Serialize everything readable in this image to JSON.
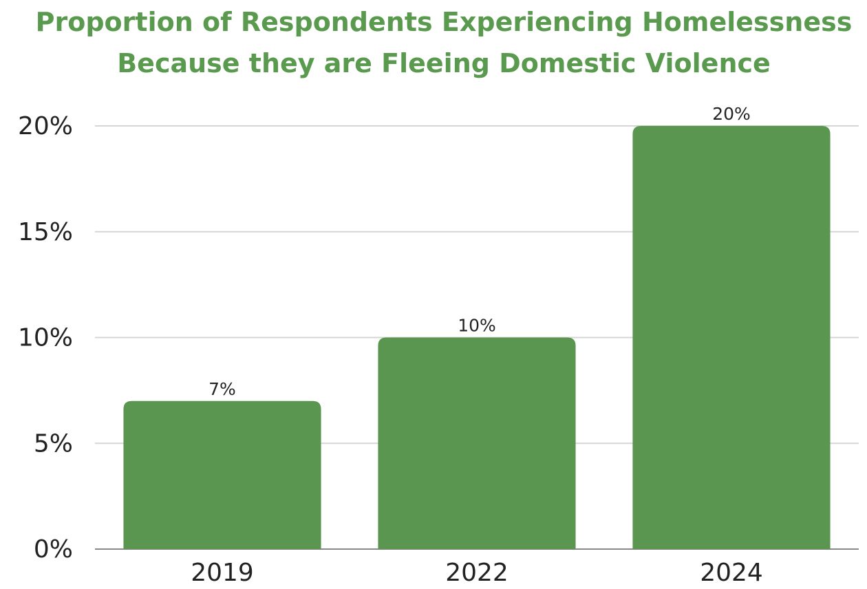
{
  "chart_data": {
    "type": "bar",
    "title": "Proportion of Respondents Experiencing Homelessness Because they are Fleeing Domestic Violence",
    "categories": [
      "2019",
      "2022",
      "2024"
    ],
    "values": [
      7,
      10,
      20
    ],
    "value_labels": [
      "7%",
      "10%",
      "20%"
    ],
    "color": "#5a964f",
    "ylim": [
      0,
      20
    ],
    "yticks": [
      {
        "value": 0,
        "label": "0%"
      },
      {
        "value": 5,
        "label": "5%"
      },
      {
        "value": 10,
        "label": "10%"
      },
      {
        "value": 15,
        "label": "15%"
      },
      {
        "value": 20,
        "label": "20%"
      }
    ],
    "grid": true
  }
}
